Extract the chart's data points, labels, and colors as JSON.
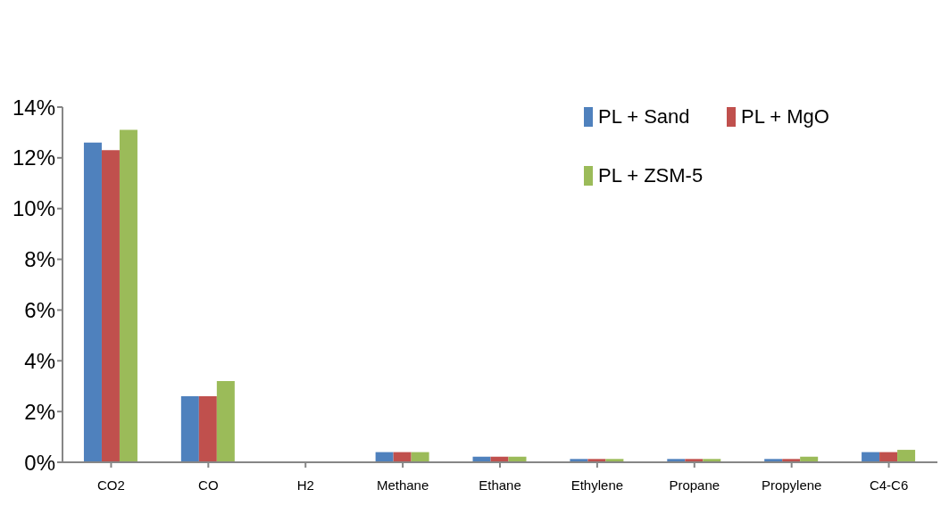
{
  "chart_data": {
    "type": "bar",
    "categories": [
      "CO2",
      "CO",
      "H2",
      "Methane",
      "Ethane",
      "Ethylene",
      "Propane",
      "Propylene",
      "C4-C6"
    ],
    "series": [
      {
        "name": "PL + Sand",
        "color": "#4f81bd",
        "values": [
          12.6,
          2.6,
          0.02,
          0.4,
          0.22,
          0.13,
          0.13,
          0.13,
          0.4
        ]
      },
      {
        "name": "PL + MgO",
        "color": "#c0504d",
        "values": [
          12.3,
          2.6,
          0.02,
          0.4,
          0.22,
          0.13,
          0.13,
          0.13,
          0.4
        ]
      },
      {
        "name": "PL + ZSM-5",
        "color": "#9bbb59",
        "values": [
          13.1,
          3.2,
          0.02,
          0.4,
          0.22,
          0.13,
          0.13,
          0.22,
          0.49
        ]
      }
    ],
    "ylim": [
      0,
      14
    ],
    "yticks": [
      {
        "value": 0,
        "label": "0%"
      },
      {
        "value": 2,
        "label": "2%"
      },
      {
        "value": 4,
        "label": "4%"
      },
      {
        "value": 6,
        "label": "6%"
      },
      {
        "value": 8,
        "label": "8%"
      },
      {
        "value": 10,
        "label": "10%"
      },
      {
        "value": 12,
        "label": "12%"
      },
      {
        "value": 14,
        "label": "14%"
      }
    ],
    "grid": false,
    "legend": "top right"
  }
}
